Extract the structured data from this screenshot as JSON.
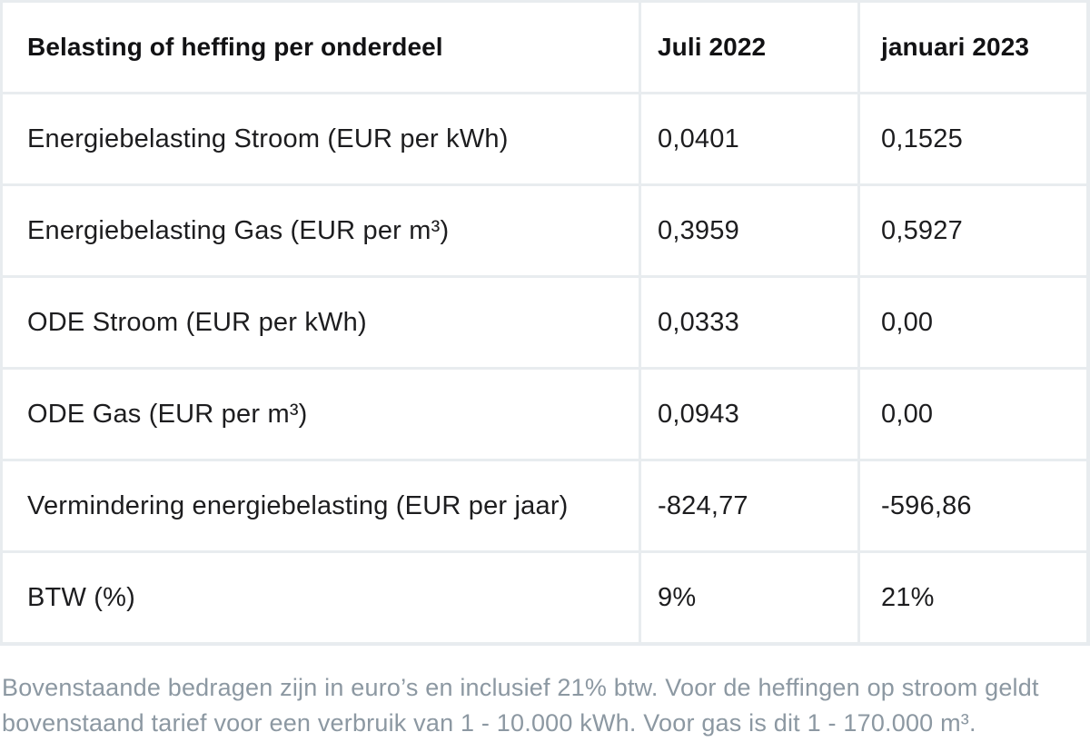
{
  "table": {
    "headers": [
      "Belasting of heffing per onderdeel",
      "Juli 2022",
      "januari 2023"
    ],
    "rows": [
      {
        "label": "Energiebelasting Stroom (EUR per kWh)",
        "values": [
          "0,0401",
          "0,1525"
        ]
      },
      {
        "label": "Energiebelasting Gas (EUR per m³)",
        "values": [
          "0,3959",
          "0,5927"
        ]
      },
      {
        "label": "ODE Stroom (EUR per kWh)",
        "values": [
          "0,0333",
          "0,00"
        ]
      },
      {
        "label": "ODE Gas (EUR per m³)",
        "values": [
          "0,0943",
          "0,00"
        ]
      },
      {
        "label": "Vermindering energiebelasting (EUR per jaar)",
        "values": [
          "-824,77",
          "-596,86"
        ]
      },
      {
        "label": "BTW (%)",
        "values": [
          "9%",
          "21%"
        ]
      }
    ]
  },
  "footnote": {
    "lines": [
      "Bovenstaande bedragen zijn in euro’s en inclusief 21% btw. Voor de heffingen op stroom geldt",
      "bovenstaand tarief voor een verbruik van 1 - 10.000 kWh. Voor gas is dit 1 - 170.000 m³."
    ]
  },
  "colors": {
    "separator": "#e8ecef",
    "header_text": "#121214",
    "body_text": "#1d1d1f",
    "footnote_text": "#8c98a2",
    "cell_background": "#ffffff"
  }
}
